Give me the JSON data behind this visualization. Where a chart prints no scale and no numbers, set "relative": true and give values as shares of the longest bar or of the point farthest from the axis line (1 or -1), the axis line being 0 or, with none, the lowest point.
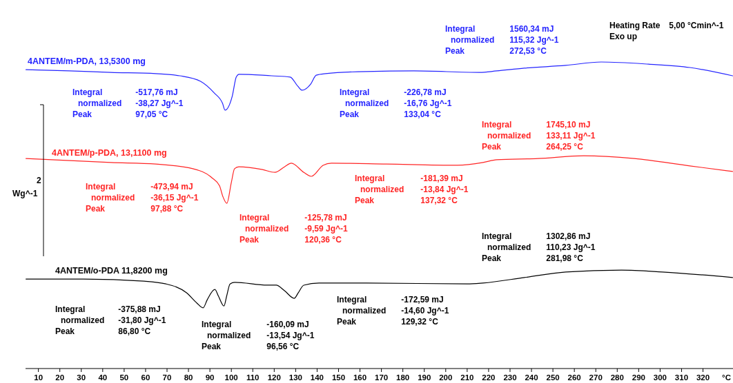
{
  "chart_data": {
    "type": "line",
    "relative": true,
    "xlabel": "°C",
    "xlim": [
      4,
      334
    ],
    "xticks": [
      10,
      20,
      30,
      40,
      50,
      60,
      70,
      80,
      90,
      100,
      110,
      120,
      130,
      140,
      150,
      160,
      170,
      180,
      190,
      200,
      210,
      220,
      230,
      240,
      250,
      260,
      270,
      280,
      290,
      300,
      310,
      320
    ],
    "grid": false,
    "marker": "none",
    "line_style": "solid",
    "series": [
      {
        "name": "4ANTEM/m-PDA, 13,5300 mg",
        "color": "#2424ff",
        "x": [
          4.2,
          24.5,
          43.8,
          64.7,
          75.9,
          85.6,
          92,
          95.9,
          97.05,
          100.4,
          102.3,
          103.6,
          114.5,
          118.7,
          127.4,
          131,
          133.04,
          137,
          139.6,
          144,
          162.7,
          185.2,
          215.8,
          223.8,
          236.7,
          256,
          272.53,
          294.6,
          313.9,
          333.8
        ],
        "values": [
          0.975,
          0.971,
          0.966,
          0.962,
          0.955,
          0.937,
          0.899,
          0.865,
          0.843,
          0.888,
          0.951,
          0.96,
          0.957,
          0.955,
          0.951,
          0.921,
          0.908,
          0.928,
          0.957,
          0.962,
          0.969,
          0.971,
          0.966,
          0.971,
          0.98,
          0.989,
          1,
          0.993,
          0.982,
          0.955
        ]
      },
      {
        "name": "4ANTEM/p-PDA, 13,1100 mg",
        "color": "#ff2424",
        "x": [
          4.2,
          43.8,
          64.7,
          82,
          91,
          94.5,
          96,
          97.88,
          100,
          101.5,
          103.5,
          114.5,
          120.36,
          124.8,
          128,
          133.8,
          137.32,
          142.8,
          146.7,
          172.4,
          205.5,
          217.4,
          223.8,
          243,
          264.25,
          288,
          313.9,
          333.8
        ],
        "values": [
          0.685,
          0.672,
          0.667,
          0.652,
          0.622,
          0.596,
          0.562,
          0.539,
          0.607,
          0.652,
          0.658,
          0.649,
          0.64,
          0.658,
          0.67,
          0.64,
          0.627,
          0.663,
          0.67,
          0.667,
          0.663,
          0.672,
          0.681,
          0.685,
          0.694,
          0.685,
          0.661,
          0.643
        ]
      },
      {
        "name": "4ANTEM/o-PDA 11,8200 mg",
        "color": "#000000",
        "x": [
          4.2,
          30.9,
          59.2,
          69.5,
          79.1,
          84,
          86.8,
          88.8,
          92.3,
          94,
          96.56,
          97.8,
          99.4,
          101.6,
          116.8,
          120.9,
          124.8,
          129.32,
          131.2,
          133.8,
          140.9,
          163,
          210,
          217.4,
          236.7,
          256,
          281.98,
          301,
          333.8
        ],
        "values": [
          0.292,
          0.292,
          0.285,
          0.276,
          0.247,
          0.213,
          0.198,
          0.225,
          0.258,
          0.236,
          0.204,
          0.236,
          0.276,
          0.281,
          0.272,
          0.272,
          0.254,
          0.229,
          0.247,
          0.272,
          0.279,
          0.279,
          0.276,
          0.279,
          0.297,
          0.315,
          0.321,
          0.315,
          0.297
        ]
      }
    ],
    "annotations": [
      "Integral -517,76 mJ",
      "normalized -38,27 Jg^-1",
      "Peak 97,05 °C",
      "Integral -226,78 mJ",
      "normalized -16,76 Jg^-1",
      "Peak 133,04 °C",
      "Integral 1560,34 mJ",
      "normalized 115,32 Jg^-1",
      "Peak 272,53 °C",
      "Integral -473,94 mJ",
      "normalized -36,15 Jg^-1",
      "Peak 97,88 °C",
      "Integral -125,78 mJ",
      "normalized -9,59 Jg^-1",
      "Peak 120,36 °C",
      "Integral -181,39 mJ",
      "normalized -13,84 Jg^-1",
      "Peak 137,32 °C",
      "Integral 1745,10 mJ",
      "normalized 133,11 Jg^-1",
      "Peak 264,25 °C",
      "Integral -375,88 mJ",
      "normalized -31,80 Jg^-1",
      "Peak 86,80 °C",
      "Integral -160,09 mJ",
      "normalized -13,54 Jg^-1",
      "Peak 96,56 °C",
      "Integral -172,59 mJ",
      "normalized -14,60 Jg^-1",
      "Peak 129,32 °C",
      "Integral 1302,86 mJ",
      "normalized 110,23 Jg^-1",
      "Peak 281,98 °C",
      "Heating Rate 5,00 °Cmin^-1",
      "Exo up",
      "2",
      "Wg^-1"
    ]
  }
}
